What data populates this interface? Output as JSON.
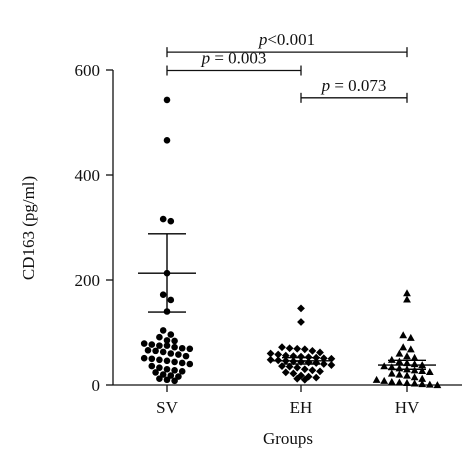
{
  "chart_data": {
    "type": "scatter",
    "title": "",
    "xlabel": "Groups",
    "ylabel": "CD163 (pg/ml)",
    "ylim": [
      0,
      600
    ],
    "yticks": [
      "0",
      "200",
      "400",
      "600"
    ],
    "yticks_values": [
      0,
      200,
      400,
      600
    ],
    "grid": false,
    "categories": [
      "SV",
      "EH",
      "HV"
    ],
    "series": [
      {
        "category": "SV",
        "marker": "circle",
        "mean": 213,
        "sem_upper": 288,
        "sem_lower": 139,
        "values": [
          543,
          466,
          316,
          312,
          213,
          172,
          162,
          140,
          104,
          96,
          91,
          85,
          84,
          79,
          77,
          75,
          75,
          72,
          70,
          69,
          66,
          65,
          63,
          60,
          58,
          55,
          51,
          50,
          48,
          46,
          44,
          42,
          40,
          36,
          33,
          30,
          28,
          26,
          24,
          20,
          18,
          16,
          12,
          10,
          8
        ]
      },
      {
        "category": "EH",
        "marker": "diamond",
        "mean": 46,
        "sem_upper": 52,
        "sem_lower": 40,
        "values": [
          146,
          120,
          72,
          70,
          69,
          68,
          65,
          62,
          60,
          58,
          56,
          55,
          54,
          53,
          52,
          51,
          50,
          48,
          47,
          46,
          45,
          44,
          43,
          42,
          40,
          38,
          36,
          35,
          33,
          30,
          28,
          26,
          24,
          22,
          18,
          16,
          14,
          12,
          10
        ]
      },
      {
        "category": "HV",
        "marker": "triangle",
        "mean": 38,
        "sem_upper": 47,
        "sem_lower": 30,
        "values": [
          175,
          163,
          95,
          90,
          72,
          68,
          60,
          55,
          52,
          48,
          45,
          42,
          40,
          38,
          36,
          34,
          32,
          30,
          28,
          27,
          25,
          22,
          20,
          18,
          15,
          12,
          10,
          8,
          6,
          5,
          4,
          3,
          2,
          1,
          0
        ]
      }
    ],
    "annotations": [
      {
        "from": "SV",
        "to": "HV",
        "y": 634,
        "label_italic": "p",
        "label_rest": "<0.001"
      },
      {
        "from": "SV",
        "to": "EH",
        "y": 599,
        "label_italic": "p",
        "label_rest": " = 0.003"
      },
      {
        "from": "EH",
        "to": "HV",
        "y": 547,
        "label_italic": "p",
        "label_rest": " = 0.073"
      }
    ]
  }
}
